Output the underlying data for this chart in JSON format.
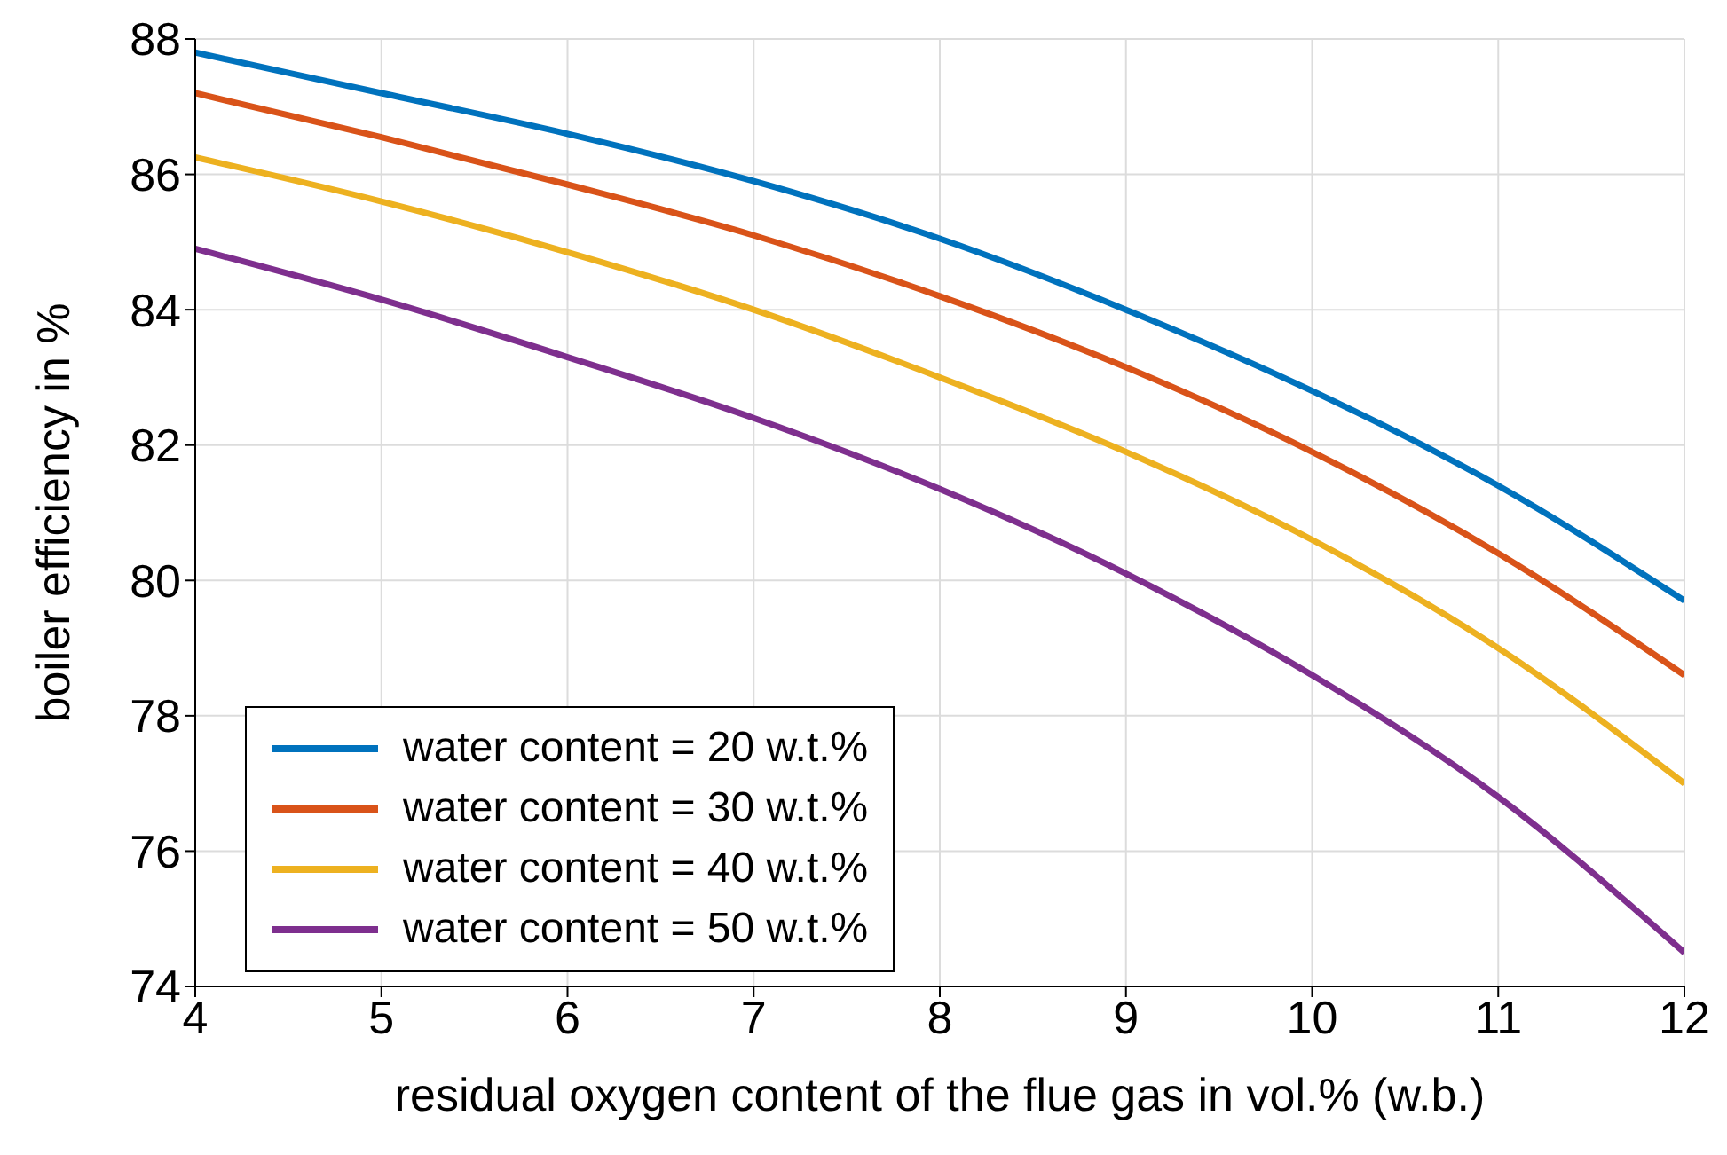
{
  "chart_data": {
    "type": "line",
    "xlabel": "residual oxygen content of the flue gas in vol.% (w.b.)",
    "ylabel": "boiler efficiency in %",
    "x": [
      4,
      5,
      6,
      7,
      8,
      9,
      10,
      11,
      12
    ],
    "series": [
      {
        "name": "water content = 20 w.t.%",
        "color": "#0072bd",
        "values": [
          87.8,
          87.2,
          86.6,
          85.9,
          85.05,
          84.0,
          82.8,
          81.4,
          79.7
        ]
      },
      {
        "name": "water content = 30 w.t.%",
        "color": "#d95319",
        "values": [
          87.2,
          86.55,
          85.85,
          85.1,
          84.2,
          83.15,
          81.9,
          80.4,
          78.6
        ]
      },
      {
        "name": "water content = 40 w.t.%",
        "color": "#edb120",
        "values": [
          86.25,
          85.6,
          84.85,
          84.0,
          83.0,
          81.9,
          80.6,
          79.0,
          77.0
        ]
      },
      {
        "name": "water content = 50 w.t.%",
        "color": "#7e2f8e",
        "values": [
          84.9,
          84.15,
          83.3,
          82.4,
          81.35,
          80.1,
          78.6,
          76.8,
          74.5
        ]
      }
    ],
    "xlim": [
      4,
      12
    ],
    "xticks": [
      4,
      5,
      6,
      7,
      8,
      9,
      10,
      11,
      12
    ],
    "ylim": [
      74,
      88
    ],
    "yticks": [
      74,
      76,
      78,
      80,
      82,
      84,
      86,
      88
    ],
    "grid": true,
    "legend": "bottom left",
    "marker": "none",
    "line_style": "solid"
  }
}
